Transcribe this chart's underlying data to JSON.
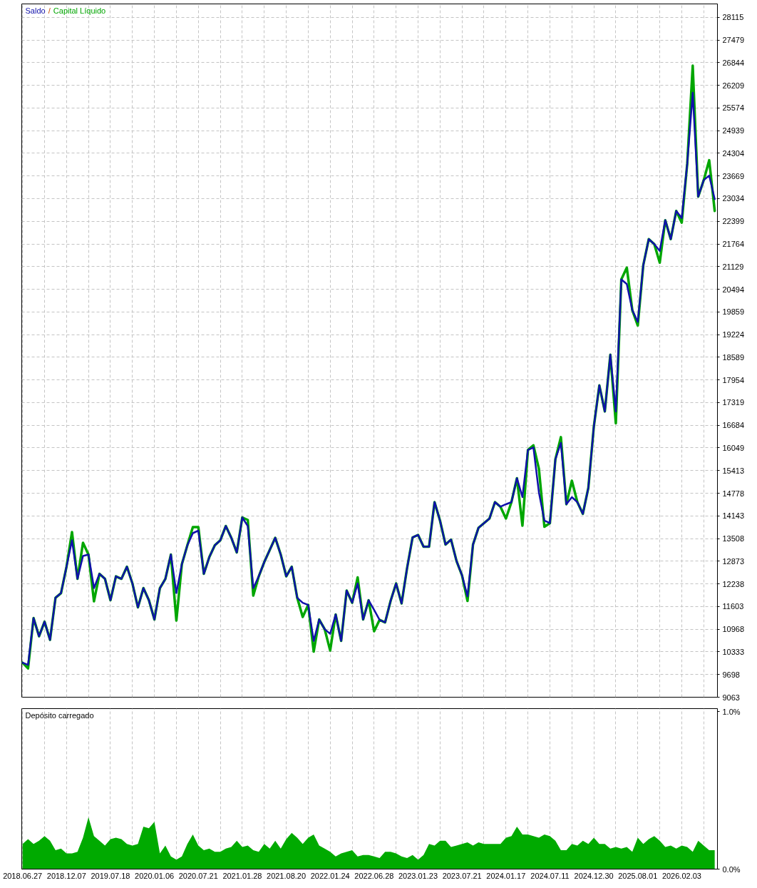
{
  "chart_data": [
    {
      "type": "line",
      "legend": "top left",
      "tick_labels": "y",
      "grid": true,
      "annotations": [
        "/"
      ],
      "ylim": [
        9063,
        28490
      ],
      "yticks": [
        9063,
        9698,
        10333,
        10968,
        11603,
        12238,
        12873,
        13508,
        14143,
        14778,
        15413,
        16049,
        16684,
        17319,
        17954,
        18589,
        19224,
        19859,
        20494,
        21129,
        21764,
        22399,
        23034,
        23669,
        24304,
        24939,
        25574,
        26209,
        26844,
        27479,
        28115
      ],
      "categories": [
        "2018.06.27",
        null,
        null,
        null,
        null,
        null,
        null,
        null,
        "2018.12.07",
        null,
        null,
        null,
        null,
        null,
        null,
        null,
        "2019.07.18",
        null,
        null,
        null,
        null,
        null,
        null,
        null,
        "2020.01.06",
        null,
        null,
        null,
        null,
        null,
        null,
        null,
        "2020.07.21",
        null,
        null,
        null,
        null,
        null,
        null,
        null,
        "2021.01.28",
        null,
        null,
        null,
        null,
        null,
        null,
        null,
        "2021.08.20",
        null,
        null,
        null,
        null,
        null,
        null,
        null,
        "2022.01.24",
        null,
        null,
        null,
        null,
        null,
        null,
        null,
        "2022.06.28",
        null,
        null,
        null,
        null,
        null,
        null,
        null,
        "2023.01.23",
        null,
        null,
        null,
        null,
        null,
        null,
        null,
        "2023.07.21",
        null,
        null,
        null,
        null,
        null,
        null,
        null,
        "2024.01.17",
        null,
        null,
        null,
        null,
        null,
        null,
        null,
        "2024.07.11",
        null,
        null,
        null,
        null,
        null,
        null,
        null,
        "2024.12.30",
        null,
        null,
        null,
        null,
        null,
        null,
        null,
        "2025.08.01",
        null,
        null,
        null,
        null,
        null,
        null,
        null,
        "2026.02.03",
        null,
        null,
        null,
        null,
        null,
        null
      ],
      "series": [
        {
          "name": "Saldo",
          "color": "#1010aa",
          "values": [
            10030,
            9970,
            11280,
            10770,
            11180,
            10670,
            11850,
            11980,
            12720,
            13460,
            12380,
            13020,
            13060,
            12120,
            12520,
            12380,
            11780,
            12450,
            12380,
            12720,
            12250,
            11580,
            12120,
            11780,
            11240,
            12120,
            12380,
            13060,
            11980,
            12790,
            13320,
            13660,
            13730,
            12520,
            12990,
            13320,
            13460,
            13860,
            13530,
            13120,
            14100,
            13860,
            12120,
            12450,
            12850,
            13190,
            13530,
            13060,
            12450,
            12720,
            11850,
            11710,
            11650,
            10640,
            11240,
            10970,
            10840,
            11380,
            10640,
            12050,
            11710,
            12250,
            11240,
            11780,
            11510,
            11230,
            11160,
            11760,
            12250,
            11690,
            12680,
            13540,
            13610,
            13280,
            13280,
            14530,
            14010,
            13340,
            13480,
            12880,
            12480,
            11890,
            13340,
            13810,
            13940,
            14070,
            14530,
            14400,
            14470,
            14530,
            15200,
            14670,
            15990,
            16060,
            14800,
            14010,
            13940,
            15730,
            16190,
            14470,
            14670,
            14530,
            14200,
            14930,
            16650,
            17800,
            17070,
            18660,
            17070,
            20770,
            20640,
            19910,
            19580,
            21170,
            21900,
            21760,
            21570,
            22430,
            21900,
            22690,
            22490,
            24010,
            26000,
            23090,
            23550,
            23680,
            23020
          ]
        },
        {
          "name": "Capital Líquido",
          "color": "#00a600",
          "values": [
            10030,
            9870,
            11280,
            10770,
            11180,
            10670,
            11850,
            11980,
            12720,
            13690,
            12380,
            13390,
            13060,
            11750,
            12520,
            12380,
            11780,
            12450,
            12380,
            12720,
            12250,
            11580,
            12120,
            11780,
            11240,
            12120,
            12380,
            13060,
            11210,
            12790,
            13320,
            13830,
            13830,
            12520,
            12990,
            13320,
            13460,
            13860,
            13530,
            13120,
            14100,
            14030,
            11910,
            12450,
            12850,
            13190,
            13530,
            13060,
            12450,
            12720,
            11850,
            11310,
            11650,
            10340,
            11240,
            10970,
            10370,
            11380,
            10640,
            12050,
            11710,
            12420,
            11240,
            11780,
            10910,
            11230,
            11160,
            11760,
            12250,
            11690,
            12680,
            13540,
            13610,
            13280,
            13280,
            14530,
            14010,
            13340,
            13480,
            12880,
            12480,
            11760,
            13340,
            13810,
            13940,
            14070,
            14530,
            14400,
            14070,
            14530,
            15200,
            13870,
            15990,
            16120,
            15460,
            13840,
            13940,
            15730,
            16350,
            14470,
            15130,
            14530,
            14200,
            14930,
            16650,
            17800,
            17070,
            18660,
            16740,
            20770,
            21100,
            19910,
            19480,
            21170,
            21900,
            21760,
            21240,
            22430,
            21900,
            22690,
            22360,
            24010,
            26760,
            23090,
            23550,
            24110,
            22690
          ]
        }
      ]
    },
    {
      "type": "area",
      "title": "Depósito carregado",
      "grid": "x",
      "color": "#00aa00",
      "ylim": [
        0,
        1.02
      ],
      "yticks": [
        {
          "value": 0,
          "label": "0.0%"
        },
        {
          "value": 1,
          "label": "1.0%"
        }
      ],
      "categories": [
        "2018.06.27",
        null,
        null,
        null,
        null,
        null,
        null,
        null,
        "2018.12.07",
        null,
        null,
        null,
        null,
        null,
        null,
        null,
        "2019.07.18",
        null,
        null,
        null,
        null,
        null,
        null,
        null,
        "2020.01.06",
        null,
        null,
        null,
        null,
        null,
        null,
        null,
        "2020.07.21",
        null,
        null,
        null,
        null,
        null,
        null,
        null,
        "2021.01.28",
        null,
        null,
        null,
        null,
        null,
        null,
        null,
        "2021.08.20",
        null,
        null,
        null,
        null,
        null,
        null,
        null,
        "2022.01.24",
        null,
        null,
        null,
        null,
        null,
        null,
        null,
        "2022.06.28",
        null,
        null,
        null,
        null,
        null,
        null,
        null,
        "2023.01.23",
        null,
        null,
        null,
        null,
        null,
        null,
        null,
        "2023.07.21",
        null,
        null,
        null,
        null,
        null,
        null,
        null,
        "2024.01.17",
        null,
        null,
        null,
        null,
        null,
        null,
        null,
        "2024.07.11",
        null,
        null,
        null,
        null,
        null,
        null,
        null,
        "2024.12.30",
        null,
        null,
        null,
        null,
        null,
        null,
        null,
        "2025.08.01",
        null,
        null,
        null,
        null,
        null,
        null,
        null,
        "2026.02.03",
        null,
        null,
        null,
        null,
        null,
        null
      ],
      "values": [
        0.16,
        0.19,
        0.16,
        0.18,
        0.21,
        0.18,
        0.12,
        0.13,
        0.1,
        0.1,
        0.11,
        0.2,
        0.33,
        0.21,
        0.18,
        0.15,
        0.19,
        0.2,
        0.19,
        0.16,
        0.15,
        0.16,
        0.27,
        0.26,
        0.3,
        0.1,
        0.15,
        0.08,
        0.06,
        0.08,
        0.16,
        0.22,
        0.15,
        0.12,
        0.13,
        0.11,
        0.11,
        0.13,
        0.14,
        0.18,
        0.14,
        0.15,
        0.12,
        0.11,
        0.16,
        0.13,
        0.18,
        0.13,
        0.19,
        0.23,
        0.2,
        0.16,
        0.2,
        0.22,
        0.15,
        0.13,
        0.11,
        0.08,
        0.1,
        0.11,
        0.12,
        0.08,
        0.09,
        0.09,
        0.08,
        0.07,
        0.11,
        0.11,
        0.1,
        0.08,
        0.07,
        0.09,
        0.06,
        0.09,
        0.16,
        0.15,
        0.18,
        0.18,
        0.14,
        0.15,
        0.16,
        0.17,
        0.15,
        0.17,
        0.16,
        0.16,
        0.16,
        0.16,
        0.2,
        0.21,
        0.27,
        0.22,
        0.22,
        0.21,
        0.2,
        0.22,
        0.21,
        0.18,
        0.12,
        0.12,
        0.16,
        0.15,
        0.18,
        0.16,
        0.2,
        0.16,
        0.16,
        0.13,
        0.14,
        0.13,
        0.14,
        0.11,
        0.2,
        0.16,
        0.19,
        0.21,
        0.18,
        0.14,
        0.15,
        0.13,
        0.15,
        0.14,
        0.11,
        0.18,
        0.15,
        0.12,
        0.12
      ]
    }
  ]
}
